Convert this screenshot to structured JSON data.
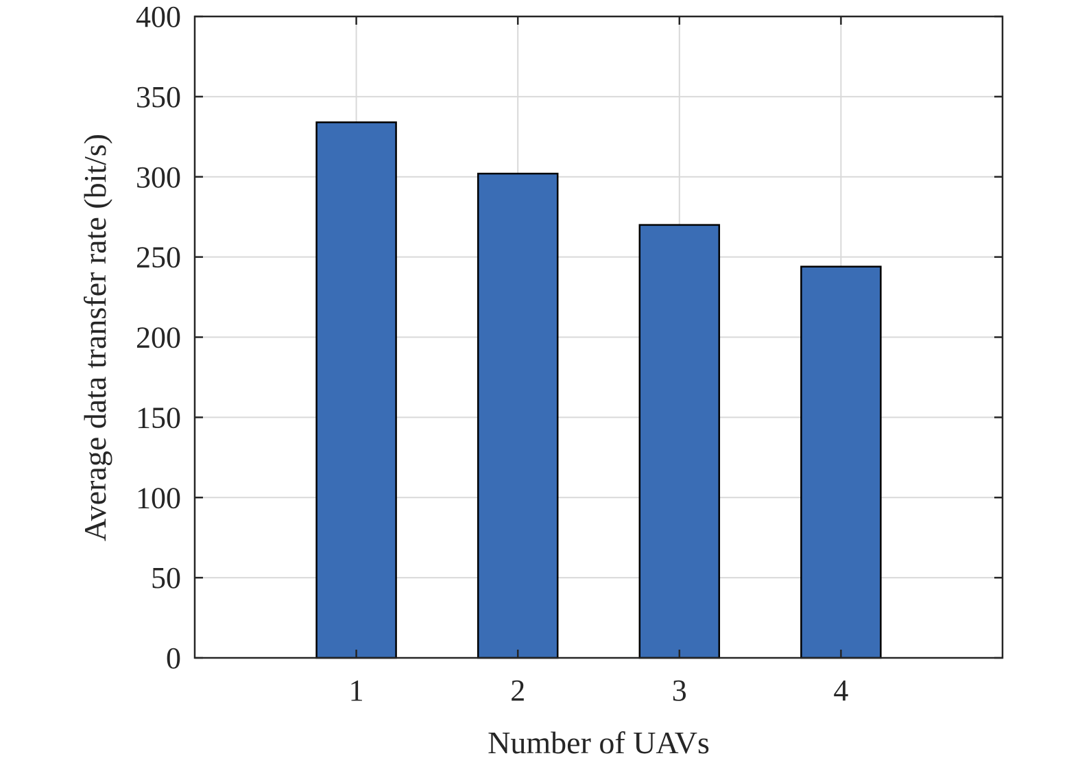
{
  "chart_data": {
    "type": "bar",
    "categories": [
      "1",
      "2",
      "3",
      "4"
    ],
    "values": [
      334,
      302,
      270,
      244
    ],
    "xlabel": "Number of UAVs",
    "ylabel": "Average data transfer rate (bit/s)",
    "ylim": [
      0,
      400
    ],
    "yticks": [
      "0",
      "50",
      "100",
      "150",
      "200",
      "250",
      "300",
      "350",
      "400"
    ],
    "grid": true,
    "bar_color": "#3a6db5",
    "bar_edge_color": "#000000"
  }
}
